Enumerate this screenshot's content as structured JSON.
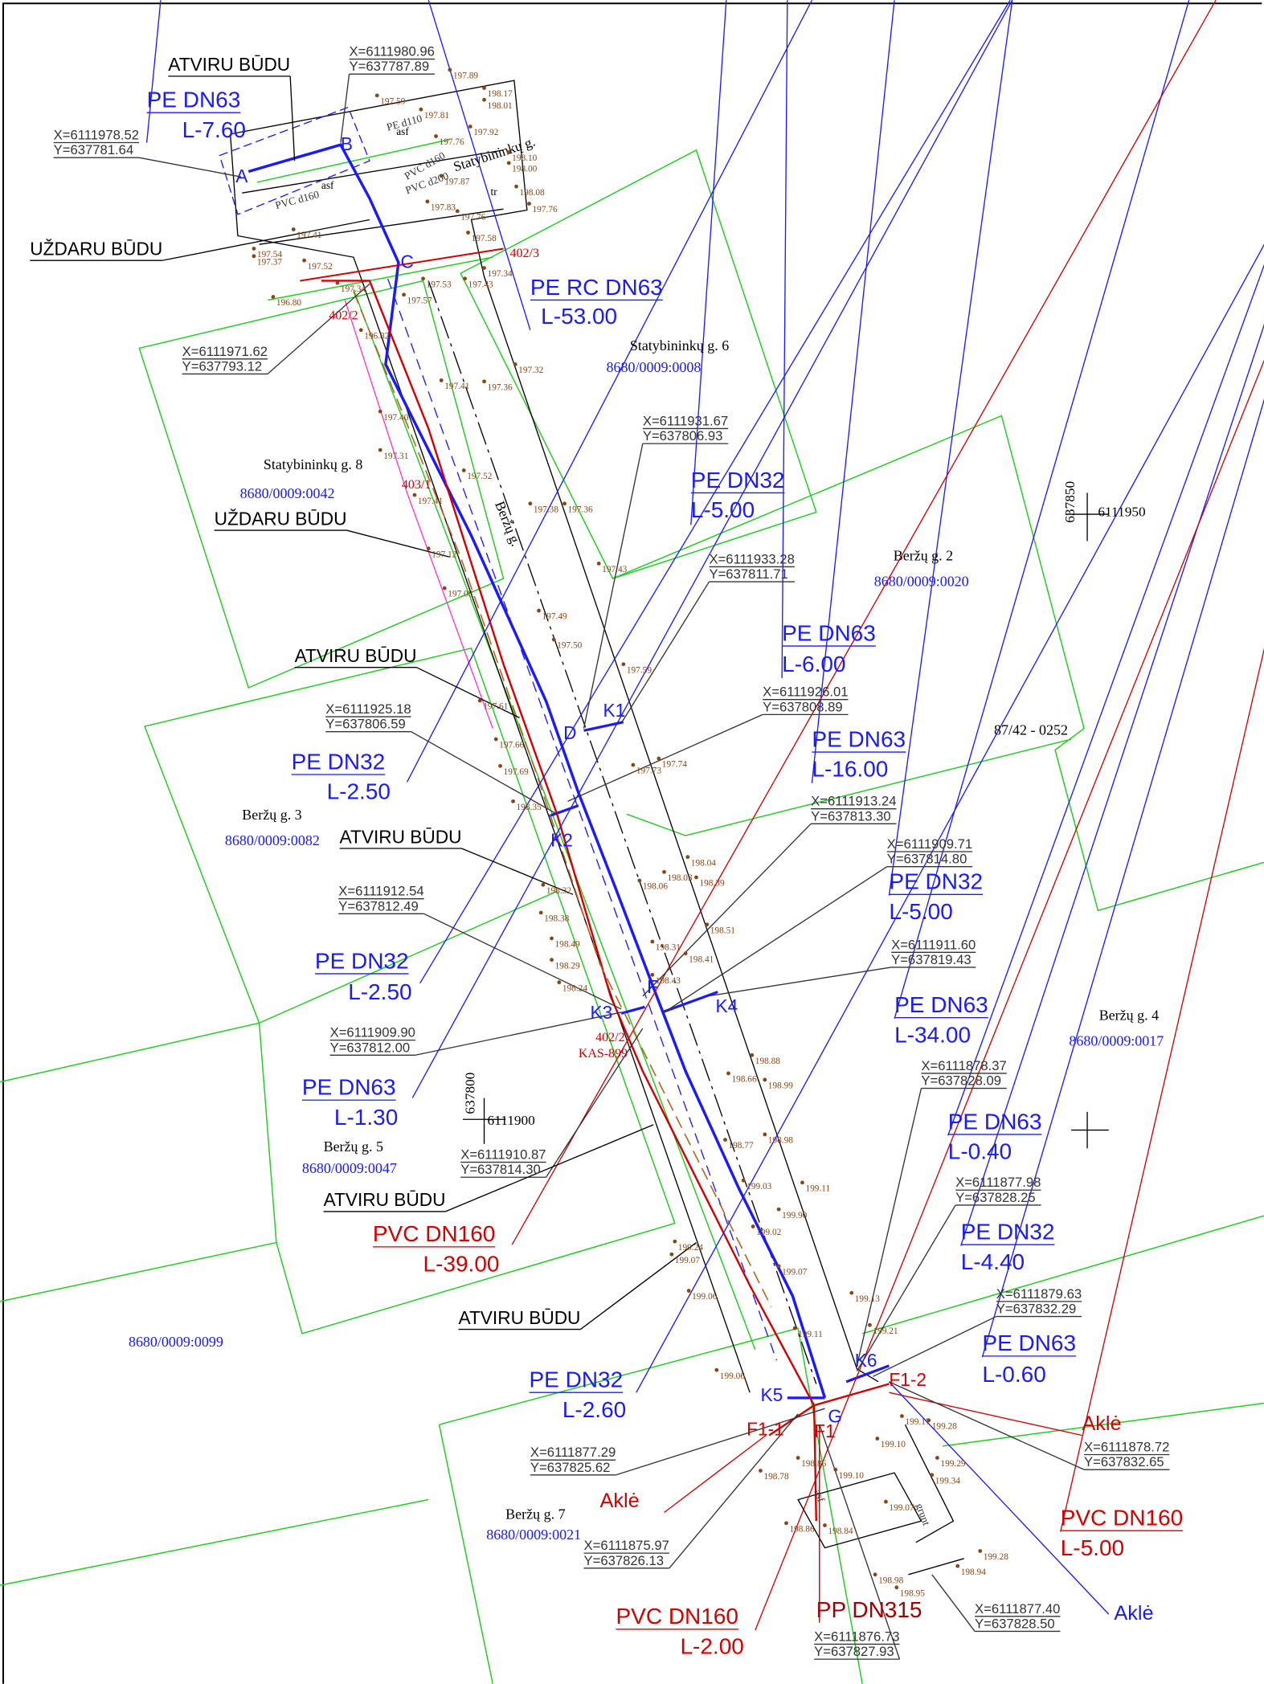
{
  "pipes": [
    {
      "name": "PE DN63",
      "length": "L-7.60"
    },
    {
      "name": "PE RC DN63",
      "length": "L-53.00"
    },
    {
      "name": "PE DN32",
      "length": "L-5.00"
    },
    {
      "name": "PE DN63",
      "length": "L-6.00"
    },
    {
      "name": "PE DN63",
      "length": "L-16.00"
    },
    {
      "name": "PE DN32",
      "length": "L-2.50"
    },
    {
      "name": "PE DN32",
      "length": "L-5.00"
    },
    {
      "name": "PE DN32",
      "length": "L-2.50"
    },
    {
      "name": "PE DN63",
      "length": "L-34.00"
    },
    {
      "name": "PE DN63",
      "length": "L-1.30"
    },
    {
      "name": "PE DN63",
      "length": "L-0.40"
    },
    {
      "name": "PVC DN160",
      "length": "L-39.00"
    },
    {
      "name": "PE DN32",
      "length": "L-4.40"
    },
    {
      "name": "PE DN63",
      "length": "L-0.60"
    },
    {
      "name": "PE DN32",
      "length": "L-2.60"
    },
    {
      "name": "PVC DN160",
      "length": "L-5.00"
    },
    {
      "name": "PVC DN160",
      "length": "L-2.00"
    }
  ],
  "other_pipes": [
    "PP DN315"
  ],
  "caps": [
    "Aklė",
    "Aklė",
    "Aklė"
  ],
  "coordinates": [
    {
      "x": "X=6111980.96",
      "y": "Y=637787.89"
    },
    {
      "x": "X=6111978.52",
      "y": "Y=637781.64"
    },
    {
      "x": "X=6111971.62",
      "y": "Y=637793.12"
    },
    {
      "x": "X=6111931.67",
      "y": "Y=637806.93"
    },
    {
      "x": "X=6111933.28",
      "y": "Y=637811.71"
    },
    {
      "x": "X=6111926.01",
      "y": "Y=637808.89"
    },
    {
      "x": "X=6111925.18",
      "y": "Y=637806.59"
    },
    {
      "x": "X=6111913.24",
      "y": "Y=637813.30"
    },
    {
      "x": "X=6111909.71",
      "y": "Y=637814.80"
    },
    {
      "x": "X=6111912.54",
      "y": "Y=637812.49"
    },
    {
      "x": "X=6111911.60",
      "y": "Y=637819.43"
    },
    {
      "x": "X=6111909.90",
      "y": "Y=637812.00"
    },
    {
      "x": "X=6111878.37",
      "y": "Y=637828.09"
    },
    {
      "x": "X=6111910.87",
      "y": "Y=637814.30"
    },
    {
      "x": "X=6111877.98",
      "y": "Y=637828.25"
    },
    {
      "x": "X=6111879.63",
      "y": "Y=637832.29"
    },
    {
      "x": "X=6111878.72",
      "y": "Y=637832.65"
    },
    {
      "x": "X=6111877.29",
      "y": "Y=637825.62"
    },
    {
      "x": "X=6111875.97",
      "y": "Y=637826.13"
    },
    {
      "x": "X=6111877.40",
      "y": "Y=637828.50"
    },
    {
      "x": "X=6111876.73",
      "y": "Y=637827.93"
    }
  ],
  "methods": [
    "ATVIRU BŪDU",
    "UŽDARU BŪDU",
    "UŽDARU BŪDU",
    "ATVIRU BŪDU",
    "ATVIRU BŪDU",
    "ATVIRU BŪDU",
    "ATVIRU BŪDU"
  ],
  "parcels": [
    {
      "address": "Statybininkų g. 6",
      "id": "8680/0009:0008"
    },
    {
      "address": "Statybininkų g. 8",
      "id": "8680/0009:0042"
    },
    {
      "address": "Beržų g. 2",
      "id": "8680/0009:0020"
    },
    {
      "address": "Beržų g. 3",
      "id": "8680/0009:0082"
    },
    {
      "address": "Beržų g. 4",
      "id": "8680/0009:0017"
    },
    {
      "address": "Beržų g. 5",
      "id": "8680/0009:0047"
    },
    {
      "address": "Beržų g. 7",
      "id": "8680/0009:0021"
    }
  ],
  "parcel_ids": [
    "8680/0009:0099",
    "87/42 - 0252"
  ],
  "grid_marks": [
    {
      "easting": "637850",
      "northing": "6111950"
    },
    {
      "easting": "637800",
      "northing": "6111900"
    }
  ],
  "points": [
    "A",
    "B",
    "C",
    "D",
    "K1",
    "K2",
    "K3",
    "F",
    "K4",
    "K5",
    "K6",
    "G",
    "F1",
    "F1-1",
    "F1-2"
  ],
  "plot_labels": [
    "402/3",
    "402/2",
    "403/1",
    "402/2",
    "KAS-899"
  ],
  "street_labels": [
    "Statybininkų g.",
    "Beržų g."
  ],
  "misc_labels": [
    "asf",
    "asf",
    "PE d110",
    "PVC d160",
    "PVC d160",
    "PVC d200",
    "tr",
    "asf",
    "grunt"
  ],
  "elevations": [
    "197.89",
    "198.17",
    "198.01",
    "197.59",
    "197.81",
    "197.76",
    "197.92",
    "198.10",
    "198.00",
    "197.87",
    "198.08",
    "197.76",
    "197.83",
    "197.76",
    "197.58",
    "197.34",
    "197.43",
    "197.53",
    "197.57",
    "197.41",
    "197.54",
    "197.37",
    "197.52",
    "197.34",
    "196.80",
    "196.82",
    "197.32",
    "197.36",
    "197.41",
    "197.40",
    "197.31",
    "197.41",
    "197.52",
    "197.38",
    "197.36",
    "197.12",
    "197.08",
    "197.43",
    "197.49",
    "197.50",
    "197.59",
    "197.61",
    "197.66",
    "197.69",
    "197.73",
    "197.74",
    "198.35",
    "198.32",
    "198.38",
    "198.49",
    "198.29",
    "198.24",
    "198.04",
    "198.39",
    "198.03",
    "198.06",
    "198.51",
    "198.41",
    "198.31",
    "198.43",
    "198.88",
    "198.66",
    "198.99",
    "198.98",
    "198.77",
    "199.11",
    "199.03",
    "199.90",
    "199.02",
    "199.07",
    "199.24",
    "199.07",
    "199.06",
    "199.13",
    "199.21",
    "199.06",
    "199.11",
    "199.17",
    "199.28",
    "199.10",
    "199.29",
    "199.34",
    "198.78",
    "198.86",
    "199.10",
    "199.07",
    "198.86",
    "198.84",
    "199.28",
    "198.94",
    "198.98",
    "198.95"
  ]
}
